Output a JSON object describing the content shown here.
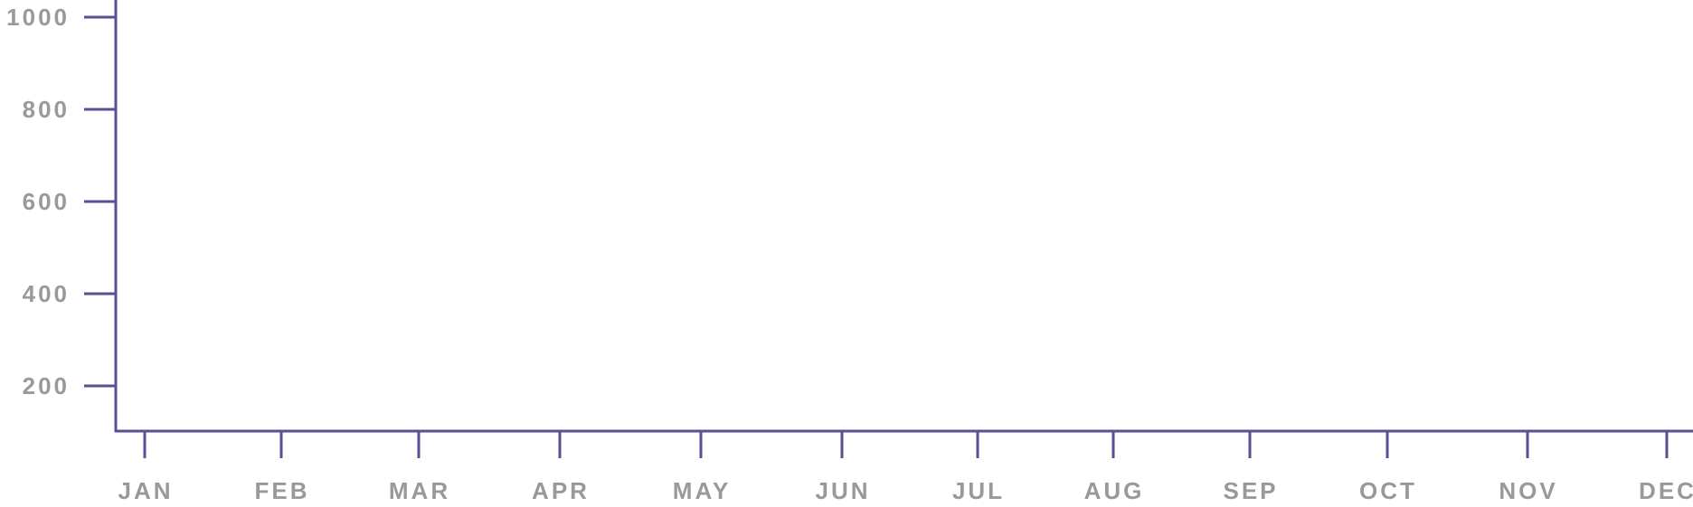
{
  "chart_data": {
    "type": "line",
    "title": "",
    "xlabel": "",
    "ylabel": "",
    "categories": [
      "JAN",
      "FEB",
      "MAR",
      "APR",
      "MAY",
      "JUN",
      "JUL",
      "AUG",
      "SEP",
      "OCT",
      "NOV",
      "DEC"
    ],
    "y_ticks": [
      200,
      400,
      600,
      800,
      1000
    ],
    "y_tick_labels": [
      "200",
      "400",
      "600",
      "800",
      "1000"
    ],
    "ylim": [
      100,
      1000
    ],
    "series": [],
    "grid": false,
    "legend": "none"
  },
  "colors": {
    "axis": "#5b4e96",
    "tick_label": "#999999",
    "background": "#ffffff"
  }
}
